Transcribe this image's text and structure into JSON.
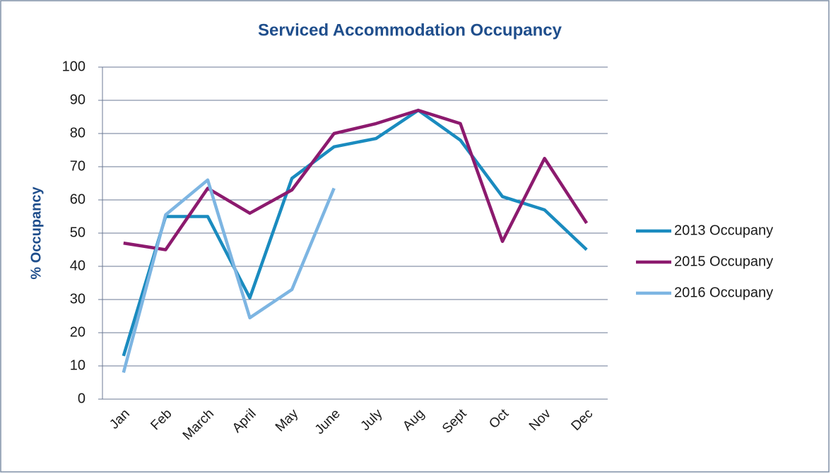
{
  "chart_data": {
    "type": "line",
    "title": "Serviced Accommodation Occupancy",
    "y_label": "% Occupancy",
    "categories": [
      "Jan",
      "Feb",
      "March",
      "April",
      "May",
      "June",
      "July",
      "Aug",
      "Sept",
      "Oct",
      "Nov",
      "Dec"
    ],
    "series": [
      {
        "name": "2013 Occupany",
        "color": "#1a8bbf",
        "values": [
          13,
          55,
          55,
          30.5,
          66.5,
          76,
          78.5,
          87,
          78,
          61,
          57,
          45
        ]
      },
      {
        "name": "2015 Occupany",
        "color": "#8c1a6e",
        "values": [
          47,
          45,
          63.5,
          56,
          63,
          80,
          83,
          87,
          83,
          47.5,
          72.5,
          53
        ]
      },
      {
        "name": "2016 Occupany",
        "color": "#7db5e2",
        "values": [
          8,
          55.5,
          66,
          24.5,
          33,
          63.5,
          null,
          null,
          null,
          null,
          null,
          null
        ]
      }
    ],
    "ylim": [
      0,
      100
    ],
    "yticks": [
      0,
      10,
      20,
      30,
      40,
      50,
      60,
      70,
      80,
      90,
      100
    ],
    "grid": true,
    "legend": "right"
  }
}
